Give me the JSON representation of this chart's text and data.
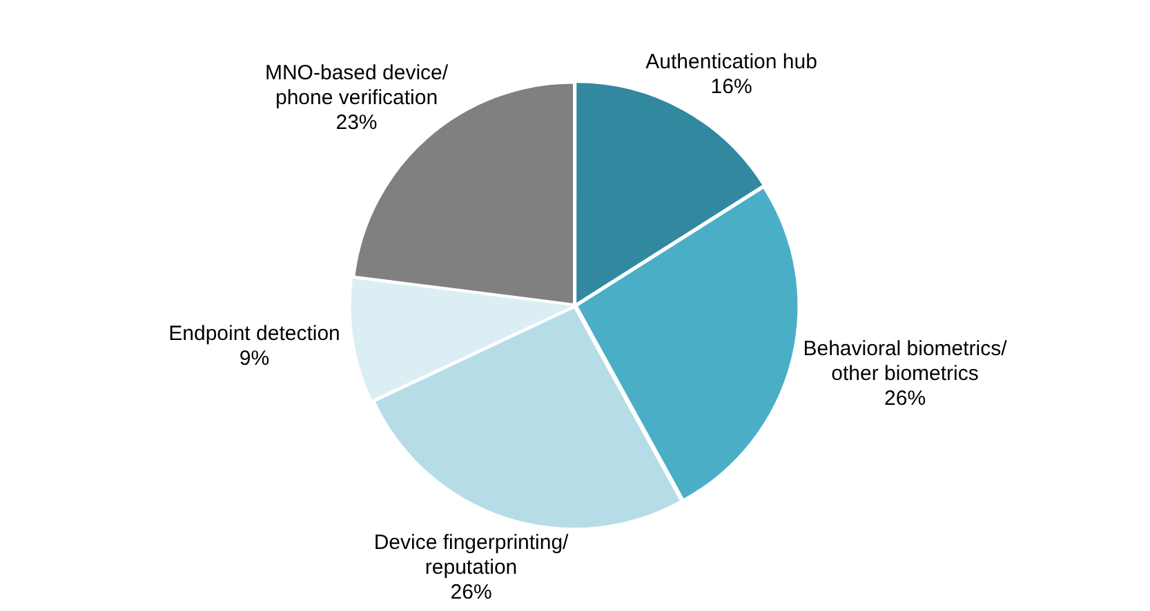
{
  "chart_data": {
    "type": "pie",
    "categories": [
      "Authentication hub",
      "Behavioral biometrics/ other biometrics",
      "Device fingerprinting/ reputation",
      "Endpoint detection",
      "MNO-based device/ phone verification"
    ],
    "values": [
      16,
      26,
      26,
      9,
      23
    ],
    "value_labels": [
      "16%",
      "26%",
      "26%",
      "9%",
      "23%"
    ],
    "colors": [
      "#31889f",
      "#4aaec6",
      "#b6dde7",
      "#dbeef4",
      "#808080"
    ],
    "legend": false
  }
}
